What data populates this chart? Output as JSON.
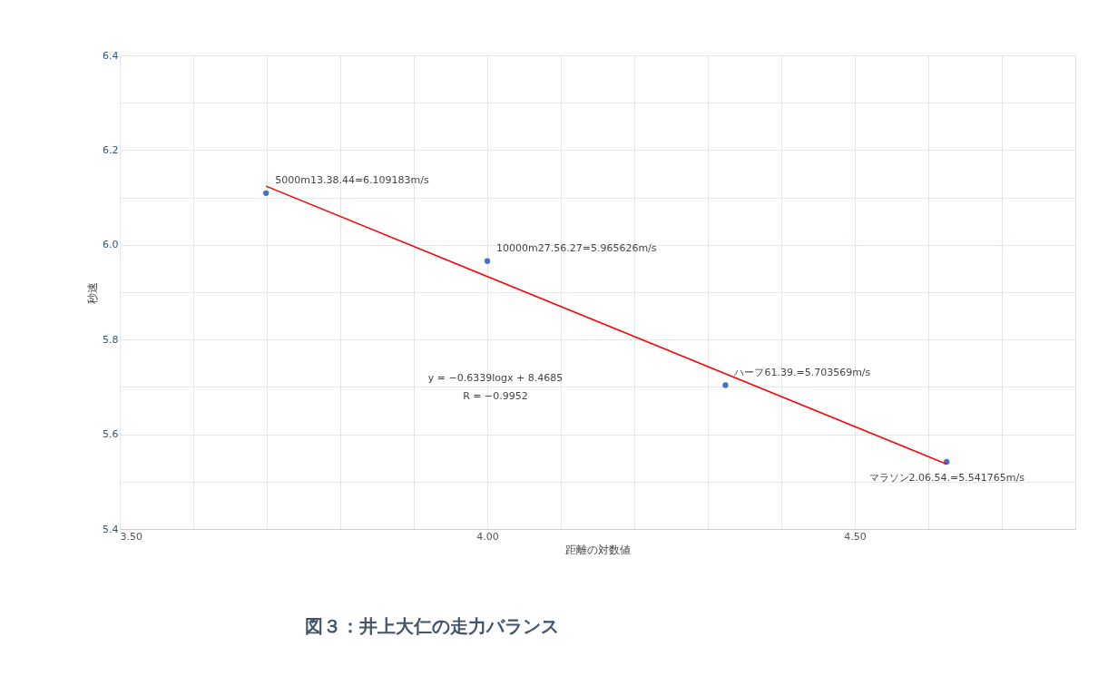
{
  "chart_data": {
    "type": "scatter",
    "title": "図３：井上大仁の走力バランス",
    "xlabel": "距離の対数値",
    "ylabel": "秒速",
    "series": [
      {
        "color": "#4472c4",
        "x": [
          3.699,
          4.0,
          4.324,
          4.625
        ],
        "values": [
          6.109183,
          5.965626,
          5.703569,
          5.541765
        ],
        "value_labels": [
          "5000m13.38.44=6.109183m/s",
          "10000m27.56.27=5.965626m/s",
          "ハーフ61.39.=5.703569m/s",
          "マラソン2.06.54.=5.541765m/s"
        ]
      },
      {
        "type": "line",
        "marker": "none",
        "color": "#ff0000",
        "x": [
          3.699,
          4.625
        ],
        "values": [
          6.124,
          5.537
        ]
      }
    ],
    "annotations": [
      "y = −0.6339logx + 8.4685",
      "R = −0.9952"
    ],
    "xlim": [
      3.5,
      4.8
    ],
    "xticks": [
      {
        "value": 3.5,
        "label": "3.50"
      },
      {
        "value": 3.6,
        "label": null
      },
      {
        "value": 3.7,
        "label": null
      },
      {
        "value": 3.8,
        "label": null
      },
      {
        "value": 3.9,
        "label": null
      },
      {
        "value": 4.0,
        "label": "4.00"
      },
      {
        "value": 4.1,
        "label": null
      },
      {
        "value": 4.2,
        "label": null
      },
      {
        "value": 4.3,
        "label": null
      },
      {
        "value": 4.4,
        "label": null
      },
      {
        "value": 4.5,
        "label": "4.50"
      },
      {
        "value": 4.6,
        "label": null
      },
      {
        "value": 4.7,
        "label": null
      }
    ],
    "ylim": [
      5.4,
      6.4
    ],
    "yticks": [
      5.4,
      {
        "value": 5.5,
        "label": null
      },
      5.6,
      {
        "value": 5.7,
        "label": null
      },
      5.8,
      {
        "value": 5.9,
        "label": null
      },
      {
        "value": 6.0,
        "label": "6.0"
      },
      {
        "value": 6.1,
        "label": null
      },
      6.2,
      {
        "value": 6.3,
        "label": null
      },
      6.4
    ],
    "grid": true,
    "marker": "circle"
  }
}
